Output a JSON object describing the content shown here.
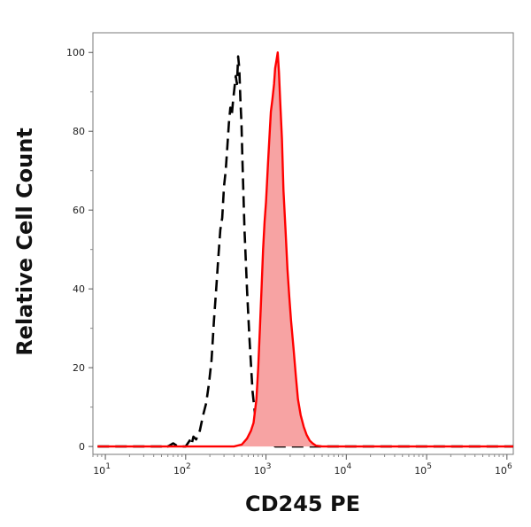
{
  "chart_data": {
    "type": "area",
    "title": "",
    "xlabel": "CD245 PE",
    "ylabel": "Relative Cell Count",
    "x_scale": "log",
    "xlim": [
      7,
      1200000
    ],
    "ylim": [
      -2,
      105
    ],
    "grid": false,
    "legend": "none",
    "x_ticks": [
      {
        "value": 10,
        "base": "10",
        "exp": "1"
      },
      {
        "value": 100,
        "base": "10",
        "exp": "2"
      },
      {
        "value": 1000,
        "base": "10",
        "exp": "3"
      },
      {
        "value": 10000,
        "base": "10",
        "exp": "4"
      },
      {
        "value": 100000,
        "base": "10",
        "exp": "5"
      },
      {
        "value": 1000000,
        "base": "10",
        "exp": "6"
      }
    ],
    "y_ticks": [
      {
        "value": 0,
        "label": "0"
      },
      {
        "value": 20,
        "label": "20"
      },
      {
        "value": 40,
        "label": "40"
      },
      {
        "value": 60,
        "label": "60"
      },
      {
        "value": 80,
        "label": "80"
      },
      {
        "value": 100,
        "label": "100"
      }
    ],
    "series": [
      {
        "style": "dashed-outline",
        "color": "#000000",
        "points": [
          [
            8,
            0
          ],
          [
            50,
            0
          ],
          [
            55,
            0.6
          ],
          [
            60,
            0
          ],
          [
            70,
            0.8
          ],
          [
            80,
            0
          ],
          [
            100,
            0
          ],
          [
            112,
            1.5
          ],
          [
            118,
            0.4
          ],
          [
            125,
            2.5
          ],
          [
            135,
            1.8
          ],
          [
            150,
            4
          ],
          [
            165,
            8
          ],
          [
            180,
            11
          ],
          [
            195,
            16
          ],
          [
            210,
            22
          ],
          [
            225,
            32
          ],
          [
            240,
            40
          ],
          [
            255,
            48
          ],
          [
            270,
            55
          ],
          [
            285,
            58
          ],
          [
            300,
            66
          ],
          [
            315,
            70
          ],
          [
            330,
            76
          ],
          [
            345,
            82
          ],
          [
            360,
            86
          ],
          [
            375,
            84
          ],
          [
            390,
            88
          ],
          [
            405,
            91
          ],
          [
            420,
            94
          ],
          [
            435,
            92
          ],
          [
            450,
            99
          ],
          [
            465,
            96
          ],
          [
            480,
            88
          ],
          [
            495,
            82
          ],
          [
            510,
            72
          ],
          [
            540,
            55
          ],
          [
            580,
            40
          ],
          [
            620,
            28
          ],
          [
            680,
            14
          ],
          [
            750,
            6
          ],
          [
            830,
            2
          ],
          [
            900,
            2.5
          ],
          [
            1000,
            0.6
          ],
          [
            1100,
            1.2
          ],
          [
            1200,
            0.5
          ],
          [
            1300,
            0
          ],
          [
            3000,
            0
          ],
          [
            1200000,
            0
          ]
        ]
      },
      {
        "style": "filled",
        "color": "#ff0000",
        "fill": "#f7a3a3",
        "points": [
          [
            8,
            0
          ],
          [
            400,
            0
          ],
          [
            500,
            0.5
          ],
          [
            580,
            2
          ],
          [
            650,
            4
          ],
          [
            700,
            6
          ],
          [
            760,
            12
          ],
          [
            800,
            20
          ],
          [
            840,
            30
          ],
          [
            880,
            40
          ],
          [
            920,
            50
          ],
          [
            960,
            57
          ],
          [
            1000,
            62
          ],
          [
            1030,
            67
          ],
          [
            1060,
            72
          ],
          [
            1100,
            78
          ],
          [
            1150,
            85
          ],
          [
            1200,
            88
          ],
          [
            1260,
            92
          ],
          [
            1300,
            96
          ],
          [
            1350,
            98
          ],
          [
            1400,
            100
          ],
          [
            1450,
            95
          ],
          [
            1500,
            88
          ],
          [
            1580,
            78
          ],
          [
            1650,
            65
          ],
          [
            1750,
            55
          ],
          [
            1850,
            45
          ],
          [
            1950,
            38
          ],
          [
            2050,
            32
          ],
          [
            2200,
            25
          ],
          [
            2350,
            18
          ],
          [
            2500,
            12
          ],
          [
            2700,
            8
          ],
          [
            2950,
            5
          ],
          [
            3200,
            3
          ],
          [
            3500,
            1.5
          ],
          [
            3800,
            0.8
          ],
          [
            4200,
            0.2
          ],
          [
            5000,
            0
          ],
          [
            1200000,
            0
          ]
        ]
      }
    ]
  }
}
